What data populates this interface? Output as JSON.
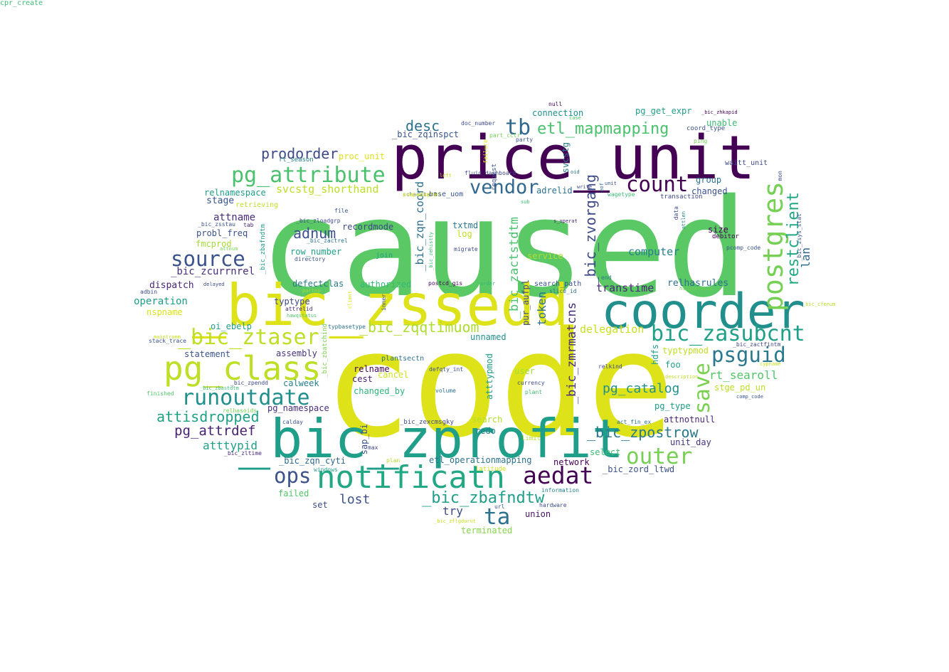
{
  "words": [
    {
      "text": "caused",
      "color": "#5ac864"
    },
    {
      "text": "code",
      "color": "#dde318"
    },
    {
      "text": "price_unit",
      "color": "#440154"
    },
    {
      "text": "_bic_zssedd",
      "color": "#dde318"
    },
    {
      "text": "coorder",
      "color": "#21908d"
    },
    {
      "text": "_bic_zprofit",
      "color": "#1f9e89"
    },
    {
      "text": "notificatn",
      "color": "#22a884"
    },
    {
      "text": "pg_class",
      "color": "#bddf26"
    },
    {
      "text": "_bic_ztaser",
      "color": "#bddf26"
    },
    {
      "text": "pg_attribute",
      "color": "#4ac16d"
    },
    {
      "text": "runoutdate",
      "color": "#21908d"
    },
    {
      "text": "bic_zasubcnt",
      "color": "#1fa187"
    },
    {
      "text": "psguid",
      "color": "#2a788e"
    },
    {
      "text": "aedat",
      "color": "#440154"
    },
    {
      "text": "outer",
      "color": "#75d054"
    },
    {
      "text": "source",
      "color": "#3b528b"
    },
    {
      "text": "count",
      "color": "#440154"
    },
    {
      "text": "vendor",
      "color": "#31688e"
    },
    {
      "text": "ta",
      "color": "#2c728e"
    },
    {
      "text": "ops",
      "color": "#3b528b"
    },
    {
      "text": "tb",
      "color": "#31688e"
    },
    {
      "text": "etl_mapmapping",
      "color": "#4ac16d"
    },
    {
      "text": "postgres",
      "color": "#75d054"
    },
    {
      "text": "save",
      "color": "#7ad151"
    },
    {
      "text": "_bic_zbafndtw",
      "color": "#1f9e89"
    },
    {
      "text": "_bic_zqqtimuom",
      "color": "#addc30"
    },
    {
      "text": "attisdropped",
      "color": "#1fa187"
    },
    {
      "text": "_bic_zpostrow",
      "color": "#2a788e"
    },
    {
      "text": "pg_catalog",
      "color": "#21908d"
    },
    {
      "text": "prodorder",
      "color": "#3e4989"
    },
    {
      "text": "pg_attrdef",
      "color": "#482173"
    },
    {
      "text": "desc",
      "color": "#2c728e"
    },
    {
      "text": "adnum",
      "color": "#3b528b"
    },
    {
      "text": "restclient",
      "color": "#22a884"
    },
    {
      "text": "_bic_zvorgang",
      "color": "#3e4989"
    },
    {
      "text": "_bic_zmrmatcns",
      "color": "#472d7b"
    },
    {
      "text": "_bic_zactstdtm",
      "color": "#4ac16d"
    },
    {
      "text": "_bic_zqn_coord",
      "color": "#2d708e"
    },
    {
      "text": "svcstg_shorthand",
      "color": "#bddf26"
    },
    {
      "text": "lost",
      "color": "#3b528b"
    },
    {
      "text": "atttypid",
      "color": "#1f9e89"
    },
    {
      "text": "lan",
      "color": "#31688e"
    },
    {
      "text": "token",
      "color": "#2c728e"
    },
    {
      "text": "try",
      "color": "#3e4989"
    },
    {
      "text": "rt_searoll",
      "color": "#52c569"
    },
    {
      "text": "delegation",
      "color": "#c8e020"
    },
    {
      "text": "transtime",
      "color": "#482878"
    },
    {
      "text": "relhasrules",
      "color": "#2d708e"
    },
    {
      "text": "computer",
      "color": "#27808e"
    },
    {
      "text": "_bic_zcurrnrel",
      "color": "#472d7b"
    },
    {
      "text": "dispatch",
      "color": "#482878"
    },
    {
      "text": "operation",
      "color": "#1f9e89"
    },
    {
      "text": "attname",
      "color": "#472d7b"
    },
    {
      "text": "probl_freq",
      "color": "#3b528b"
    },
    {
      "text": "fmcprod",
      "color": "#a5db36"
    },
    {
      "text": "stage",
      "color": "#39568c"
    },
    {
      "text": "relnamespace",
      "color": "#1f9e89"
    },
    {
      "text": "row_number",
      "color": "#1fa187"
    },
    {
      "text": "recordmode",
      "color": "#3e4989"
    },
    {
      "text": "txtmd",
      "color": "#2a788e"
    },
    {
      "text": "log",
      "color": "#c2df23"
    },
    {
      "text": "service",
      "color": "#b5de2b"
    },
    {
      "text": "authorized",
      "color": "#35b779"
    },
    {
      "text": "defectclas",
      "color": "#2a788e"
    },
    {
      "text": "nspname",
      "color": "#dde318"
    },
    {
      "text": "oi_ebelp",
      "color": "#1f9e89"
    },
    {
      "text": "statement",
      "color": "#3b528b"
    },
    {
      "text": "assembly",
      "color": "#46337e"
    },
    {
      "text": "typtype",
      "color": "#3e4989"
    },
    {
      "text": "calweek",
      "color": "#27808e"
    },
    {
      "text": "cest",
      "color": "#482173"
    },
    {
      "text": "relname",
      "color": "#440154"
    },
    {
      "text": "changed_by",
      "color": "#2fb47c"
    },
    {
      "text": "cancel",
      "color": "#d2e21b"
    },
    {
      "text": "unnamed",
      "color": "#21908d"
    },
    {
      "text": "user",
      "color": "#a5db36"
    },
    {
      "text": "foo",
      "color": "#1fa187"
    },
    {
      "text": "typtypmod",
      "color": "#c2df23"
    },
    {
      "text": "stge_pd_un",
      "color": "#bddf26"
    },
    {
      "text": "pg_type",
      "color": "#1f9e89"
    },
    {
      "text": "attnotnull",
      "color": "#482878"
    },
    {
      "text": "unit_day",
      "color": "#46337e"
    },
    {
      "text": "select",
      "color": "#3dbc74"
    },
    {
      "text": "network",
      "color": "#440154"
    },
    {
      "text": "_bic_zord_ltwd",
      "color": "#3b528b"
    },
    {
      "text": "pg_namespace",
      "color": "#472d7b"
    },
    {
      "text": "_bic_zqn_cyti",
      "color": "#31688e"
    },
    {
      "text": "etl_operationmapping",
      "color": "#2c728e"
    },
    {
      "text": "redo",
      "color": "#27808e"
    },
    {
      "text": "search",
      "color": "#b5de2b"
    },
    {
      "text": "failed",
      "color": "#52c569"
    },
    {
      "text": "set",
      "color": "#3e4989"
    },
    {
      "text": "union",
      "color": "#471164"
    },
    {
      "text": "terminated",
      "color": "#86d549"
    },
    {
      "text": "size",
      "color": "#440154"
    },
    {
      "text": "group",
      "color": "#2c728e"
    },
    {
      "text": "changed",
      "color": "#3b528b"
    },
    {
      "text": "adrelid",
      "color": "#2c728e"
    },
    {
      "text": "base_uom",
      "color": "#3b528b"
    },
    {
      "text": "proc_unit",
      "color": "#dde318"
    },
    {
      "text": "connection",
      "color": "#21908d"
    },
    {
      "text": "pg_get_expr",
      "color": "#1f9e89"
    },
    {
      "text": "unable",
      "color": "#3dbc74"
    },
    {
      "text": "waitt_unit",
      "color": "#3e4989"
    },
    {
      "text": "_bic_zqinspct",
      "color": "#3b528b"
    },
    {
      "text": "svcstg",
      "color": "#2a788e"
    },
    {
      "text": "hdfs",
      "color": "#1f9e89"
    },
    {
      "text": "relkind",
      "color": "#3e4989"
    },
    {
      "text": "search_path",
      "color": "#3b528b"
    },
    {
      "text": "slice_id",
      "color": "#2c728e"
    },
    {
      "text": "end",
      "color": "#2a788e"
    },
    {
      "text": "debitor",
      "color": "#440154"
    },
    {
      "text": "pur_aufpl",
      "color": "#3e4989"
    },
    {
      "text": "atttypmod",
      "color": "#1f9e89"
    },
    {
      "text": "plantsectn",
      "color": "#2c728e"
    },
    {
      "text": "sap_bi",
      "color": "#3b528b"
    },
    {
      "text": "postcd_gis",
      "color": "#440154"
    },
    {
      "text": "_bic_zexcmsgky",
      "color": "#3e4989"
    },
    {
      "text": "act_fin_ex",
      "color": "#2c728e"
    },
    {
      "text": "limit",
      "color": "#b5de2b"
    },
    {
      "text": "currency",
      "color": "#3e4989"
    },
    {
      "text": "plant",
      "color": "#3dbc74"
    },
    {
      "text": "volume",
      "color": "#2c728e"
    },
    {
      "text": "defqty_int",
      "color": "#3b528b"
    },
    {
      "text": "information",
      "color": "#27808e"
    },
    {
      "text": "hardware",
      "color": "#3e4989"
    },
    {
      "text": "url",
      "color": "#3b528b"
    },
    {
      "text": "_bic_zflgdurut",
      "color": "#c8e020"
    },
    {
      "text": "latitude",
      "color": "#d2e21b"
    },
    {
      "text": "plan",
      "color": "#b5de2b"
    },
    {
      "text": "max",
      "color": "#3e4989"
    },
    {
      "text": "windows",
      "color": "#1f9e89"
    },
    {
      "text": "_bic_zltime",
      "color": "#482878"
    },
    {
      "text": "calday",
      "color": "#3b528b"
    },
    {
      "text": "relhasoids",
      "color": "#75d054"
    },
    {
      "text": "finished",
      "color": "#52c569"
    },
    {
      "text": "_bic_zbastdtm",
      "color": "#3dbc74"
    },
    {
      "text": "_bic_zpendd",
      "color": "#3e4989"
    },
    {
      "text": "maintromm",
      "color": "#c8e020"
    },
    {
      "text": "stack_trace",
      "color": "#3b528b"
    },
    {
      "text": "adbin",
      "color": "#3e4989"
    },
    {
      "text": "_bic_zbafndtm",
      "color": "#1f9e89"
    },
    {
      "text": "attnum",
      "color": "#7ad151"
    },
    {
      "text": "_bic_zsstau",
      "color": "#3b528b"
    },
    {
      "text": "tab",
      "color": "#482878"
    },
    {
      "text": "retrieving",
      "color": "#bddf26"
    },
    {
      "text": "_bic_zloadgrp",
      "color": "#3e4989"
    },
    {
      "text": "_bic_zactrel",
      "color": "#2c728e"
    },
    {
      "text": "directory",
      "color": "#3b528b"
    },
    {
      "text": "join",
      "color": "#1f9e89"
    },
    {
      "text": "delayed",
      "color": "#3e4989"
    },
    {
      "text": "partno",
      "color": "#a5db36"
    },
    {
      "text": "attrelid",
      "color": "#482878"
    },
    {
      "text": "hawqstatus",
      "color": "#52c569"
    },
    {
      "text": "typbasetype",
      "color": "#2c728e"
    },
    {
      "text": "_bic_zbatchind",
      "color": "#7ad151"
    },
    {
      "text": "inner",
      "color": "#3b528b"
    },
    {
      "text": "client",
      "color": "#dde318"
    },
    {
      "text": "order",
      "color": "#35b779"
    },
    {
      "text": "migrate",
      "color": "#3e4989"
    },
    {
      "text": "_bic_zehistty",
      "color": "#3dbc74"
    },
    {
      "text": "file",
      "color": "#3b528b"
    },
    {
      "text": "rt_season",
      "color": "#27808e"
    },
    {
      "text": "left",
      "color": "#c8e020"
    },
    {
      "text": "sub",
      "color": "#3dbc74"
    },
    {
      "text": "fluid_dashboard",
      "color": "#3e4989"
    },
    {
      "text": "schedstart",
      "color": "#3b528b"
    },
    {
      "text": "soapadapter",
      "color": "#d2e21b"
    },
    {
      "text": "request",
      "color": "#3b528b"
    },
    {
      "text": "failure",
      "color": "#dde318"
    },
    {
      "text": "part_cctr",
      "color": "#75d054"
    },
    {
      "text": "party",
      "color": "#3b528b"
    },
    {
      "text": "doc_number",
      "color": "#3e4989"
    },
    {
      "text": "null",
      "color": "#440154"
    },
    {
      "text": "case",
      "color": "#52c569"
    },
    {
      "text": "coord_type",
      "color": "#3b528b"
    },
    {
      "text": "_bic_zhkapid",
      "color": "#440154"
    },
    {
      "text": "ping",
      "color": "#75d054"
    },
    {
      "text": "oid",
      "color": "#2c728e"
    },
    {
      "text": "write",
      "color": "#3e4989"
    },
    {
      "text": "unit",
      "color": "#3b528b"
    },
    {
      "text": "eof",
      "color": "#2c728e"
    },
    {
      "text": "wagetype",
      "color": "#3dbc74"
    },
    {
      "text": "transaction",
      "color": "#3e4989"
    },
    {
      "text": "s_operat",
      "color": "#482878"
    },
    {
      "text": "data",
      "color": "#3e4989"
    },
    {
      "text": "attlen",
      "color": "#27808e"
    },
    {
      "text": "pcomp_code",
      "color": "#3b528b"
    },
    {
      "text": "mon",
      "color": "#3e4989"
    },
    {
      "text": "_bic_zsys_stat",
      "color": "#3b528b"
    },
    {
      "text": "httpservice",
      "color": "#75d054"
    },
    {
      "text": "_bic_cfenum",
      "color": "#b5de2b"
    },
    {
      "text": "cypname",
      "color": "#c8e020"
    },
    {
      "text": "_bic_zactfintm",
      "color": "#3e4989"
    },
    {
      "text": "description",
      "color": "#bddf26"
    },
    {
      "text": "comp_code",
      "color": "#3b528b"
    },
    {
      "text": "cpr_create",
      "color": "#3dbc74"
    }
  ]
}
